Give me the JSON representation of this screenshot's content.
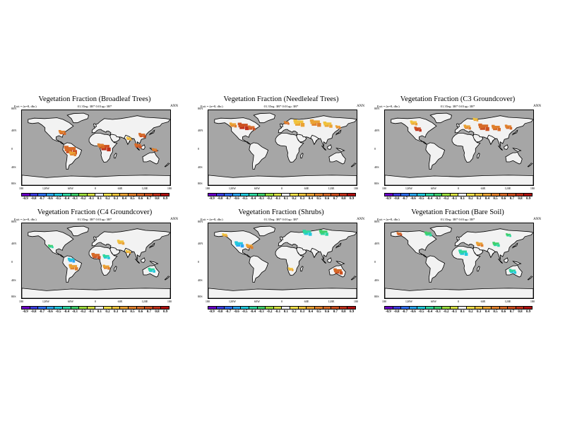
{
  "shared": {
    "units": "Exit = (n=8, dbc)",
    "resolution": "01.35eg: 3B*   0:01rgc 3B*",
    "season": "ANN",
    "lat_labels": [
      "80N",
      "40N",
      "0",
      "40S",
      "80S"
    ],
    "lon_labels": [
      "180",
      "120W",
      "60W",
      "0",
      "60E",
      "120E",
      "180"
    ],
    "colorbar_labels": [
      "-0.9",
      "-0.8",
      "-0.7",
      "-0.6",
      "-0.5",
      "-0.4",
      "-0.3",
      "-0.2",
      "-0.1",
      "0.1",
      "0.2",
      "0.3",
      "0.4",
      "0.5",
      "0.6",
      "0.7",
      "0.8",
      "0.9"
    ],
    "colorbar_colors": [
      "#6a00c8",
      "#3c3ce0",
      "#2f6ef5",
      "#2aa5f5",
      "#22c8dc",
      "#2ed7a0",
      "#3fcf6c",
      "#9bdc3c",
      "#d7e043",
      "#ffffff",
      "#f5e04a",
      "#f0c23c",
      "#eaa234",
      "#e0802c",
      "#d66a28",
      "#cc5020",
      "#c0301a",
      "#b01010"
    ],
    "colors": {
      "ocean": "#a6a6a6",
      "land": "#f2f2f2",
      "coast": "#000000"
    }
  },
  "panels": [
    {
      "title": "Vegetation Fraction (Broadleaf Trees)",
      "patches": [
        {
          "lon": -62,
          "lat": -5,
          "value": 0.6,
          "r": 7
        },
        {
          "lon": -57,
          "lat": -14,
          "value": 0.4,
          "r": 4
        },
        {
          "lon": 22,
          "lat": 1,
          "value": 0.7,
          "r": 6
        },
        {
          "lon": 12,
          "lat": 5,
          "value": 0.5,
          "r": 4
        },
        {
          "lon": -82,
          "lat": 37,
          "value": 0.5,
          "r": 4
        },
        {
          "lon": 102,
          "lat": 5,
          "value": 0.6,
          "r": 4
        },
        {
          "lon": 112,
          "lat": 30,
          "value": 0.6,
          "r": 4
        },
        {
          "lon": 142,
          "lat": -5,
          "value": 0.5,
          "r": 3
        },
        {
          "lon": 80,
          "lat": 22,
          "value": 0.3,
          "r": 3
        }
      ]
    },
    {
      "title": "Vegetation Fraction (Needleleaf Trees)",
      "patches": [
        {
          "lon": -95,
          "lat": 52,
          "value": 0.7,
          "r": 6
        },
        {
          "lon": -75,
          "lat": 48,
          "value": 0.6,
          "r": 4
        },
        {
          "lon": -120,
          "lat": 55,
          "value": 0.4,
          "r": 4
        },
        {
          "lon": 40,
          "lat": 60,
          "value": 0.3,
          "r": 6
        },
        {
          "lon": 80,
          "lat": 60,
          "value": 0.4,
          "r": 6
        },
        {
          "lon": 110,
          "lat": 56,
          "value": 0.3,
          "r": 5
        },
        {
          "lon": 10,
          "lat": 60,
          "value": 0.5,
          "r": 3
        },
        {
          "lon": 135,
          "lat": 50,
          "value": 0.4,
          "r": 3
        }
      ]
    },
    {
      "title": "Vegetation Fraction (C3 Groundcover)",
      "patches": [
        {
          "lon": -100,
          "lat": 45,
          "value": 0.7,
          "r": 4
        },
        {
          "lon": -110,
          "lat": 60,
          "value": 0.3,
          "r": 4
        },
        {
          "lon": 60,
          "lat": 50,
          "value": 0.6,
          "r": 6
        },
        {
          "lon": 90,
          "lat": 48,
          "value": 0.5,
          "r": 5
        },
        {
          "lon": 20,
          "lat": 50,
          "value": 0.4,
          "r": 4
        },
        {
          "lon": 120,
          "lat": 50,
          "value": 0.5,
          "r": 4
        },
        {
          "lon": 40,
          "lat": 68,
          "value": 0.3,
          "r": 3
        }
      ]
    },
    {
      "title": "Vegetation Fraction (C4 Groundcover)",
      "patches": [
        {
          "lon": 0,
          "lat": 12,
          "value": 0.6,
          "r": 5
        },
        {
          "lon": 25,
          "lat": 10,
          "value": -0.4,
          "r": 4
        },
        {
          "lon": 25,
          "lat": -15,
          "value": 0.4,
          "r": 4
        },
        {
          "lon": -55,
          "lat": -15,
          "value": 0.4,
          "r": 5
        },
        {
          "lon": -60,
          "lat": 2,
          "value": -0.5,
          "r": 4
        },
        {
          "lon": 135,
          "lat": -22,
          "value": -0.4,
          "r": 4
        },
        {
          "lon": 78,
          "lat": 22,
          "value": 0.3,
          "r": 3
        },
        {
          "lon": -110,
          "lat": 35,
          "value": -0.3,
          "r": 3
        },
        {
          "lon": 60,
          "lat": 45,
          "value": 0.3,
          "r": 4
        }
      ]
    },
    {
      "title": "Vegetation Fraction (Shrubs)",
      "patches": [
        {
          "lon": -105,
          "lat": 40,
          "value": -0.5,
          "r": 5
        },
        {
          "lon": -80,
          "lat": 35,
          "value": 0.4,
          "r": 4
        },
        {
          "lon": 60,
          "lat": 68,
          "value": -0.4,
          "r": 5
        },
        {
          "lon": 100,
          "lat": 68,
          "value": -0.3,
          "r": 5
        },
        {
          "lon": 135,
          "lat": -25,
          "value": 0.6,
          "r": 5
        },
        {
          "lon": -140,
          "lat": 62,
          "value": 0.3,
          "r": 3
        },
        {
          "lon": 20,
          "lat": -20,
          "value": 0.3,
          "r": 3
        }
      ]
    },
    {
      "title": "Vegetation Fraction (Bare Soil)",
      "patches": [
        {
          "lon": -75,
          "lat": 65,
          "value": -0.3,
          "r": 4
        },
        {
          "lon": 10,
          "lat": 20,
          "value": -0.4,
          "r": 5
        },
        {
          "lon": 50,
          "lat": 40,
          "value": 0.4,
          "r": 4
        },
        {
          "lon": 90,
          "lat": 40,
          "value": -0.3,
          "r": 4
        },
        {
          "lon": 130,
          "lat": -25,
          "value": -0.4,
          "r": 4
        },
        {
          "lon": -145,
          "lat": 65,
          "value": 0.6,
          "r": 3
        },
        {
          "lon": 120,
          "lat": 62,
          "value": -0.3,
          "r": 3
        }
      ]
    }
  ]
}
